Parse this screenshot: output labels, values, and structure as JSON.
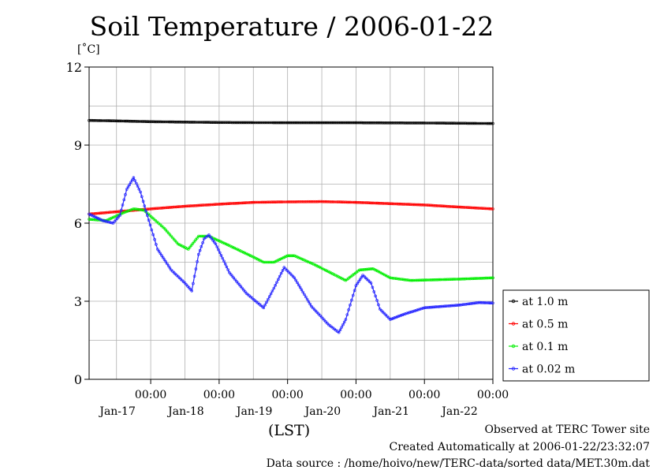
{
  "title": "Soil Temperature / 2006-01-22",
  "y_unit": "[˚C]",
  "x_axis_label": "(LST)",
  "footer": {
    "line1": "Observed at TERC Tower site",
    "line2": "Created Automatically at 2006-01-22/23:32:07",
    "line3": "Data source : /home/hoivo/new/TERC-data/sorted data/MET.30m.dat"
  },
  "chart_data": {
    "type": "line",
    "title": "Soil Temperature / 2006-01-22",
    "ylabel": "[˚C]",
    "xlabel": "(LST)",
    "ylim": [
      0,
      12
    ],
    "yticks": [
      0,
      3,
      6,
      9,
      12
    ],
    "xlim": [
      -0.9,
      5.0
    ],
    "xticks": [
      {
        "x": 0,
        "time": "00:00",
        "date": "Jan-17"
      },
      {
        "x": 1,
        "time": "00:00",
        "date": "Jan-18"
      },
      {
        "x": 2,
        "time": "00:00",
        "date": "Jan-19"
      },
      {
        "x": 3,
        "time": "00:00",
        "date": "Jan-20"
      },
      {
        "x": 4,
        "time": "00:00",
        "date": "Jan-21"
      },
      {
        "x": 5,
        "time": "00:00",
        "date": "Jan-22"
      }
    ],
    "grid": true,
    "legend_position": "right",
    "series": [
      {
        "name": "at 1.0 m",
        "color": "#000000",
        "points": [
          [
            -0.9,
            9.95
          ],
          [
            -0.5,
            9.93
          ],
          [
            0,
            9.9
          ],
          [
            1,
            9.87
          ],
          [
            2,
            9.86
          ],
          [
            3,
            9.86
          ],
          [
            4,
            9.85
          ],
          [
            5,
            9.83
          ]
        ]
      },
      {
        "name": "at 0.5 m",
        "color": "#ff0000",
        "points": [
          [
            -0.9,
            6.35
          ],
          [
            0,
            6.55
          ],
          [
            0.5,
            6.65
          ],
          [
            1,
            6.73
          ],
          [
            1.5,
            6.8
          ],
          [
            2,
            6.82
          ],
          [
            2.5,
            6.83
          ],
          [
            3,
            6.8
          ],
          [
            3.5,
            6.75
          ],
          [
            4,
            6.7
          ],
          [
            4.5,
            6.62
          ],
          [
            5,
            6.55
          ]
        ]
      },
      {
        "name": "at 0.1 m",
        "color": "#00ee00",
        "points": [
          [
            -0.9,
            6.15
          ],
          [
            -0.65,
            6.1
          ],
          [
            -0.4,
            6.4
          ],
          [
            -0.25,
            6.55
          ],
          [
            -0.1,
            6.5
          ],
          [
            0.2,
            5.8
          ],
          [
            0.4,
            5.2
          ],
          [
            0.55,
            5.0
          ],
          [
            0.7,
            5.5
          ],
          [
            0.85,
            5.5
          ],
          [
            1.1,
            5.2
          ],
          [
            1.5,
            4.7
          ],
          [
            1.65,
            4.5
          ],
          [
            1.8,
            4.5
          ],
          [
            2.0,
            4.75
          ],
          [
            2.1,
            4.75
          ],
          [
            2.4,
            4.4
          ],
          [
            2.7,
            4.0
          ],
          [
            2.85,
            3.8
          ],
          [
            3.05,
            4.2
          ],
          [
            3.25,
            4.25
          ],
          [
            3.5,
            3.9
          ],
          [
            3.8,
            3.8
          ],
          [
            4.5,
            3.85
          ],
          [
            5,
            3.9
          ],
          [
            5,
            3.9
          ]
        ]
      },
      {
        "name": "at 0.02 m",
        "color": "#2222ff",
        "points": [
          [
            -0.9,
            6.35
          ],
          [
            -0.7,
            6.1
          ],
          [
            -0.55,
            6.0
          ],
          [
            -0.45,
            6.3
          ],
          [
            -0.35,
            7.3
          ],
          [
            -0.25,
            7.75
          ],
          [
            -0.15,
            7.2
          ],
          [
            -0.05,
            6.3
          ],
          [
            0.1,
            5.0
          ],
          [
            0.3,
            4.2
          ],
          [
            0.5,
            3.7
          ],
          [
            0.6,
            3.4
          ],
          [
            0.7,
            4.8
          ],
          [
            0.78,
            5.4
          ],
          [
            0.85,
            5.55
          ],
          [
            0.95,
            5.2
          ],
          [
            1.15,
            4.1
          ],
          [
            1.4,
            3.3
          ],
          [
            1.65,
            2.75
          ],
          [
            1.8,
            3.5
          ],
          [
            1.95,
            4.3
          ],
          [
            2.1,
            3.9
          ],
          [
            2.35,
            2.8
          ],
          [
            2.6,
            2.1
          ],
          [
            2.75,
            1.8
          ],
          [
            2.85,
            2.3
          ],
          [
            3.0,
            3.6
          ],
          [
            3.1,
            4.0
          ],
          [
            3.22,
            3.7
          ],
          [
            3.35,
            2.7
          ],
          [
            3.5,
            2.3
          ],
          [
            3.7,
            2.5
          ],
          [
            4.0,
            2.75
          ],
          [
            4.5,
            2.85
          ],
          [
            4.8,
            2.95
          ],
          [
            5,
            2.93
          ]
        ]
      }
    ]
  }
}
